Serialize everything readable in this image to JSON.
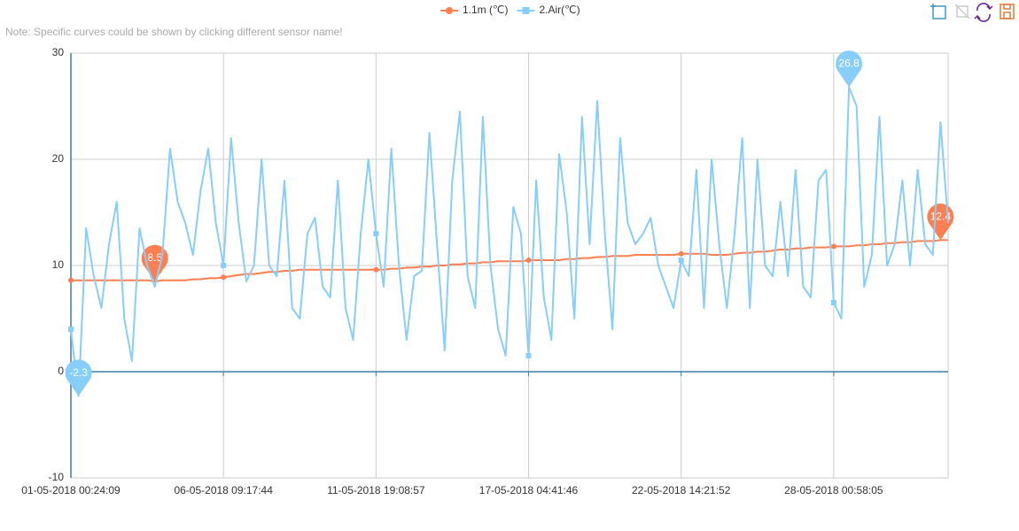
{
  "note": "Note: Specific curves could be shown by clicking different sensor name!",
  "chart_data": {
    "type": "line",
    "categories": [
      "01-05-2018 00:24:09",
      null,
      null,
      null,
      null,
      null,
      null,
      null,
      null,
      null,
      null,
      null,
      null,
      null,
      null,
      null,
      null,
      null,
      null,
      null,
      "06-05-2018 09:17:44",
      null,
      null,
      null,
      null,
      null,
      null,
      null,
      null,
      null,
      null,
      null,
      null,
      null,
      null,
      null,
      null,
      null,
      null,
      null,
      "11-05-2018 19:08:57",
      null,
      null,
      null,
      null,
      null,
      null,
      null,
      null,
      null,
      null,
      null,
      null,
      null,
      null,
      null,
      null,
      null,
      null,
      null,
      "17-05-2018 04:41:46",
      null,
      null,
      null,
      null,
      null,
      null,
      null,
      null,
      null,
      null,
      null,
      null,
      null,
      null,
      null,
      null,
      null,
      null,
      null,
      "22-05-2018 14:21:52",
      null,
      null,
      null,
      null,
      null,
      null,
      null,
      null,
      null,
      null,
      null,
      null,
      null,
      null,
      null,
      null,
      null,
      null,
      null,
      "28-05-2018 00:58:05",
      null,
      null,
      null,
      null,
      null,
      null,
      null,
      null,
      null,
      null,
      null,
      null,
      null,
      null,
      null
    ],
    "series": [
      {
        "name": "1.1m (℃)",
        "color": "#ff7f50",
        "values": [
          8.6,
          8.6,
          8.6,
          8.6,
          8.6,
          8.6,
          8.6,
          8.6,
          8.6,
          8.6,
          8.6,
          8.5,
          8.6,
          8.6,
          8.6,
          8.6,
          8.7,
          8.7,
          8.8,
          8.8,
          8.9,
          9.0,
          9.1,
          9.2,
          9.2,
          9.3,
          9.4,
          9.4,
          9.5,
          9.5,
          9.6,
          9.6,
          9.6,
          9.6,
          9.6,
          9.6,
          9.6,
          9.6,
          9.6,
          9.6,
          9.6,
          9.6,
          9.7,
          9.7,
          9.8,
          9.8,
          9.9,
          9.9,
          10.0,
          10.0,
          10.1,
          10.1,
          10.2,
          10.2,
          10.3,
          10.3,
          10.4,
          10.4,
          10.4,
          10.4,
          10.5,
          10.5,
          10.5,
          10.5,
          10.5,
          10.6,
          10.6,
          10.7,
          10.7,
          10.8,
          10.8,
          10.9,
          10.9,
          10.9,
          11.0,
          11.0,
          11.0,
          11.0,
          11.0,
          11.0,
          11.1,
          11.1,
          11.1,
          11.1,
          11.0,
          11.0,
          11.0,
          11.1,
          11.2,
          11.2,
          11.3,
          11.3,
          11.4,
          11.5,
          11.5,
          11.6,
          11.6,
          11.7,
          11.7,
          11.7,
          11.8,
          11.8,
          11.8,
          11.9,
          11.9,
          12.0,
          12.0,
          12.1,
          12.1,
          12.2,
          12.2,
          12.3,
          12.3,
          12.3,
          12.4,
          12.4
        ]
      },
      {
        "name": "2.Air(℃)",
        "color": "#87cefa",
        "values": [
          4,
          -2.3,
          13.5,
          9,
          6,
          12,
          16,
          5,
          1,
          13.5,
          10,
          8,
          11,
          21,
          16,
          14,
          11,
          17,
          21,
          14,
          10,
          22,
          14,
          8.5,
          10,
          20,
          10,
          9,
          18,
          6,
          5,
          13,
          14.5,
          8,
          7,
          18,
          6,
          3,
          13,
          20,
          13,
          8,
          21,
          10,
          3,
          9,
          9.5,
          22.5,
          12,
          2,
          18,
          24.5,
          9,
          6,
          24,
          10,
          4,
          1.5,
          15.5,
          13,
          1.5,
          18,
          7,
          3,
          20.5,
          15,
          5,
          24,
          12,
          25.5,
          13,
          4,
          22,
          14,
          12,
          13,
          14.5,
          10,
          8,
          6,
          10.5,
          9,
          19,
          6,
          20,
          12,
          6,
          13,
          22,
          6,
          20,
          10,
          9,
          16,
          9,
          19,
          8,
          7,
          18,
          19,
          6.5,
          5,
          26.8,
          25,
          8,
          11,
          24,
          10,
          12,
          18,
          10,
          19,
          12,
          11,
          23.5,
          14
        ]
      }
    ],
    "ylim": [
      -10,
      30
    ],
    "yticks": [
      -10,
      0,
      10,
      20,
      30
    ],
    "grid": true
  }
}
